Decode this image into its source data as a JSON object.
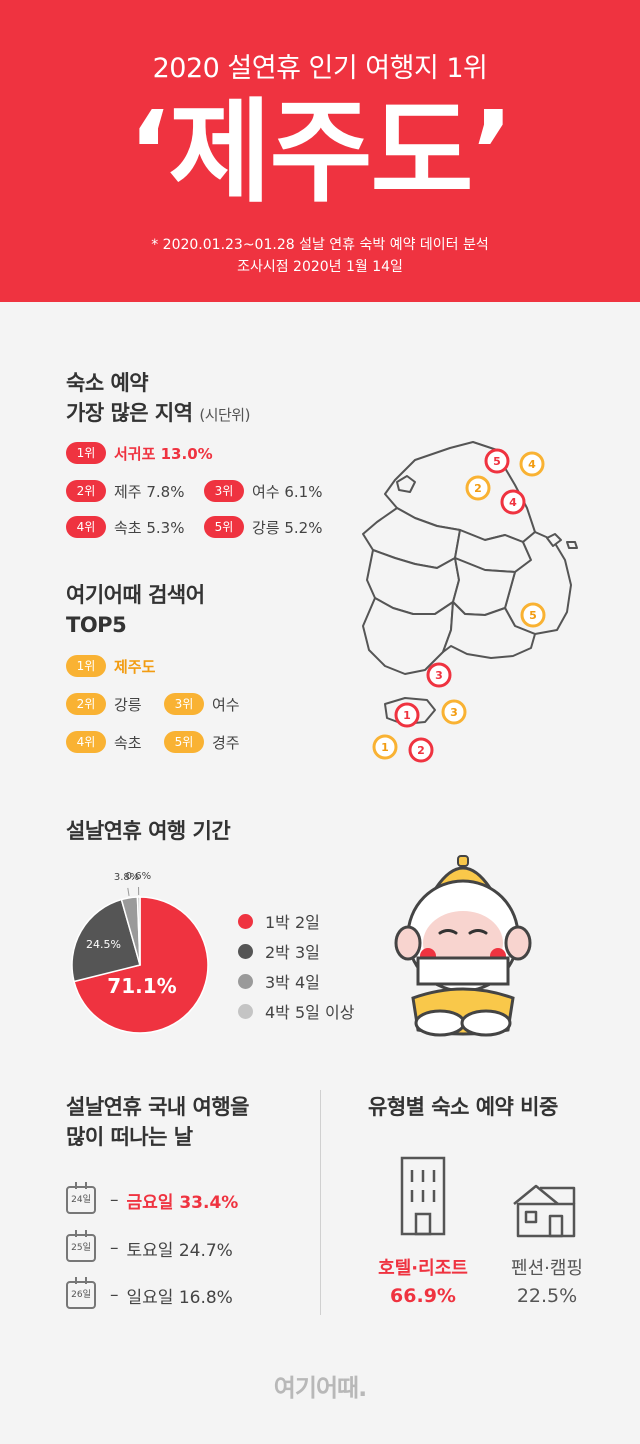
{
  "header": {
    "subtitle": "2020 설연휴 인기 여행지 1위",
    "title": "‘제주도’",
    "note_line1": "* 2020.01.23~01.28 설날 연휴 숙박 예약 데이터 분석",
    "note_line2": "조사시점 2020년 1월 14일"
  },
  "booking": {
    "heading_line1": "숙소 예약",
    "heading_line2": "가장 많은 지역",
    "heading_unit": "(시단위)",
    "items": [
      {
        "rank": "1위",
        "text": "서귀포 13.0%"
      },
      {
        "rank": "2위",
        "text": "제주 7.8%"
      },
      {
        "rank": "3위",
        "text": "여수 6.1%"
      },
      {
        "rank": "4위",
        "text": "속초 5.3%"
      },
      {
        "rank": "5위",
        "text": "강릉 5.2%"
      }
    ]
  },
  "search": {
    "heading_line1": "여기어때 검색어",
    "heading_line2": "TOP5",
    "items": [
      {
        "rank": "1위",
        "text": "제주도"
      },
      {
        "rank": "2위",
        "text": "강릉"
      },
      {
        "rank": "3위",
        "text": "여수"
      },
      {
        "rank": "4위",
        "text": "속초"
      },
      {
        "rank": "5위",
        "text": "경주"
      }
    ]
  },
  "map_markers": {
    "red": [
      "1",
      "2",
      "3",
      "4",
      "5"
    ],
    "yellow": [
      "1",
      "2",
      "3",
      "4",
      "5"
    ]
  },
  "duration": {
    "heading": "설날연휴 여행 기간"
  },
  "chart_data": {
    "type": "pie",
    "categories": [
      "1박 2일",
      "2박 3일",
      "3박 4일",
      "4박 5일 이상"
    ],
    "values": [
      71.1,
      24.5,
      3.8,
      0.6
    ],
    "labels": [
      "71.1%",
      "24.5%",
      "3.8%",
      "0.6%"
    ],
    "colors": [
      "#ef3340",
      "#555555",
      "#9a9a9a",
      "#c4c4c4"
    ],
    "legend": "right"
  },
  "days": {
    "heading_line1": "설날연휴 국내 여행을",
    "heading_line2": "많이 떠나는 날",
    "dash": "–",
    "items": [
      {
        "date": "24일",
        "text": "금요일  33.4%"
      },
      {
        "date": "25일",
        "text": "토요일  24.7%"
      },
      {
        "date": "26일",
        "text": "일요일  16.8%"
      }
    ]
  },
  "accommodation": {
    "heading": "유형별 숙소 예약 비중",
    "hotel_label": "호텔·리조트",
    "hotel_pct": "66.9%",
    "pension_label": "펜션·캠핑",
    "pension_pct": "22.5%"
  },
  "brand": {
    "logo": "여기어때."
  },
  "colors": {
    "accent_red": "#ef3340",
    "accent_yellow": "#f9b233"
  }
}
